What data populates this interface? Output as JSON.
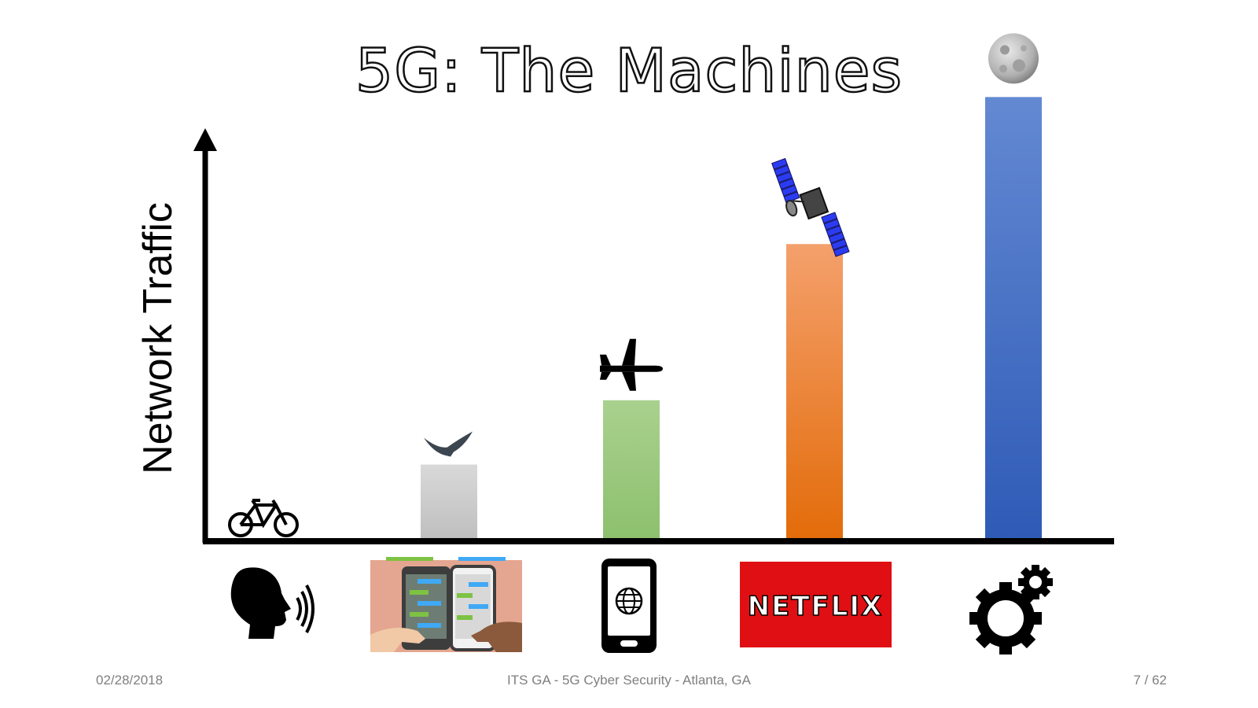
{
  "slide": {
    "title": "5G: The Machines",
    "footer_date": "02/28/2018",
    "footer_center": "ITS GA - 5G Cyber Security - Atlanta, GA",
    "page_current": "7",
    "page_total": "/ 62"
  },
  "chart_data": {
    "type": "bar",
    "title": "5G: The Machines",
    "ylabel": "Network Traffic",
    "xlabel": "",
    "categories": [
      "voice",
      "texting",
      "mobile web",
      "video streaming",
      "machines"
    ],
    "values": [
      0,
      16,
      30,
      64,
      96
    ],
    "ylim": [
      0,
      100
    ],
    "grid": false,
    "legend": "none",
    "bar_colors": [
      [
        "#d9d9d9",
        "#bfbfbf"
      ],
      [
        "#a9d18e",
        "#8dc06e"
      ],
      [
        "#f4a06c",
        "#e36c0a"
      ],
      [
        "#6389d2",
        "#2f5bb7"
      ]
    ],
    "value_markers": [
      "bicycle-icon",
      "bird-icon",
      "airplane-icon",
      "satellite-icon",
      "moon-icon"
    ],
    "category_icons": [
      "speaking-head-icon",
      "texting-phones-icon",
      "mobile-globe-icon",
      "netflix-logo",
      "gears-icon"
    ],
    "netflix_text": "NETFLIX"
  }
}
